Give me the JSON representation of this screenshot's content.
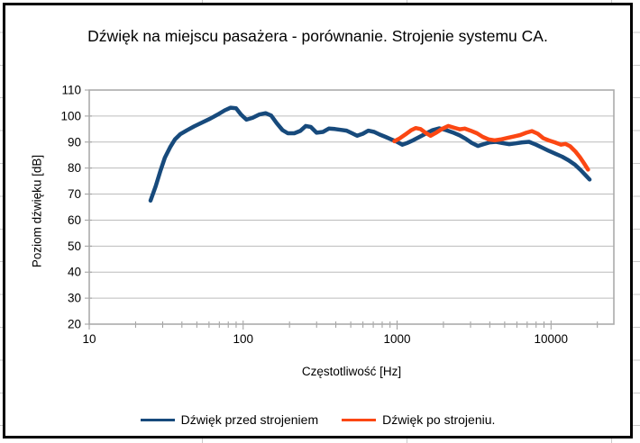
{
  "chart_data": {
    "type": "line",
    "title": "Dźwięk na miejscu pasażera - porównanie. Strojenie systemu CA.",
    "xlabel": "Częstotliwość [Hz]",
    "ylabel": "Poziom dźwięku [dB]",
    "x_scale": "log",
    "xlim": [
      10,
      25600
    ],
    "ylim": [
      20,
      110
    ],
    "y_tick_step": 10,
    "x_tick_labels": [
      "10",
      "100",
      "1000",
      "10000"
    ],
    "y_tick_labels": [
      "20",
      "30",
      "40",
      "50",
      "60",
      "70",
      "80",
      "90",
      "100",
      "110"
    ],
    "grid": "horizontal",
    "legend_position": "bottom",
    "series": [
      {
        "name": "Dźwięk przed strojeniem",
        "color": "#174A7C",
        "points": [
          [
            25,
            67.5
          ],
          [
            27,
            73
          ],
          [
            29,
            79
          ],
          [
            31,
            84
          ],
          [
            33.5,
            88
          ],
          [
            36,
            91
          ],
          [
            39,
            93
          ],
          [
            43,
            94.5
          ],
          [
            48,
            96
          ],
          [
            54,
            97.5
          ],
          [
            61,
            99
          ],
          [
            68,
            100.5
          ],
          [
            76,
            102.2
          ],
          [
            83,
            103.2
          ],
          [
            90,
            103
          ],
          [
            97,
            100.5
          ],
          [
            105,
            98.6
          ],
          [
            115,
            99.3
          ],
          [
            127,
            100.6
          ],
          [
            140,
            101.1
          ],
          [
            152,
            100.2
          ],
          [
            165,
            97.3
          ],
          [
            180,
            94.6
          ],
          [
            195,
            93.4
          ],
          [
            215,
            93.4
          ],
          [
            235,
            94.3
          ],
          [
            255,
            96.2
          ],
          [
            275,
            95.8
          ],
          [
            300,
            93.6
          ],
          [
            330,
            93.9
          ],
          [
            360,
            95.2
          ],
          [
            395,
            95
          ],
          [
            430,
            94.7
          ],
          [
            470,
            94.4
          ],
          [
            510,
            93.4
          ],
          [
            550,
            92.4
          ],
          [
            600,
            93.2
          ],
          [
            650,
            94.4
          ],
          [
            710,
            93.9
          ],
          [
            770,
            92.9
          ],
          [
            840,
            92
          ],
          [
            920,
            91
          ],
          [
            1000,
            90.1
          ],
          [
            1080,
            89
          ],
          [
            1170,
            89.7
          ],
          [
            1270,
            90.7
          ],
          [
            1400,
            92
          ],
          [
            1550,
            93.4
          ],
          [
            1700,
            94.6
          ],
          [
            1880,
            95.3
          ],
          [
            2080,
            94.6
          ],
          [
            2300,
            93.7
          ],
          [
            2550,
            92.6
          ],
          [
            2800,
            91.2
          ],
          [
            3050,
            89.7
          ],
          [
            3350,
            88.5
          ],
          [
            3650,
            89.2
          ],
          [
            4000,
            89.9
          ],
          [
            4400,
            90.1
          ],
          [
            4850,
            89.6
          ],
          [
            5350,
            89.2
          ],
          [
            5900,
            89.5
          ],
          [
            6500,
            89.9
          ],
          [
            7200,
            90.1
          ],
          [
            8000,
            89
          ],
          [
            8800,
            87.8
          ],
          [
            9700,
            86.6
          ],
          [
            10700,
            85.5
          ],
          [
            11800,
            84.4
          ],
          [
            13000,
            83
          ],
          [
            14300,
            81.3
          ],
          [
            15600,
            79.2
          ],
          [
            16800,
            77.2
          ],
          [
            17800,
            75.6
          ]
        ]
      },
      {
        "name": "Dźwięk po strojeniu.",
        "color": "#FB4713",
        "points": [
          [
            960,
            90.3
          ],
          [
            1040,
            91.4
          ],
          [
            1130,
            92.9
          ],
          [
            1230,
            94.5
          ],
          [
            1320,
            95.4
          ],
          [
            1420,
            95
          ],
          [
            1530,
            93.6
          ],
          [
            1650,
            92.4
          ],
          [
            1780,
            93.5
          ],
          [
            1950,
            95
          ],
          [
            2150,
            96.2
          ],
          [
            2350,
            95.5
          ],
          [
            2550,
            94.9
          ],
          [
            2750,
            95.2
          ],
          [
            3000,
            94.4
          ],
          [
            3300,
            93.4
          ],
          [
            3600,
            92
          ],
          [
            3950,
            91
          ],
          [
            4300,
            90.7
          ],
          [
            4700,
            91
          ],
          [
            5200,
            91.6
          ],
          [
            5700,
            92.1
          ],
          [
            6300,
            92.7
          ],
          [
            6900,
            93.6
          ],
          [
            7500,
            94.2
          ],
          [
            8200,
            93.2
          ],
          [
            8900,
            91.5
          ],
          [
            9700,
            90.6
          ],
          [
            10600,
            89.9
          ],
          [
            11600,
            89
          ],
          [
            12400,
            89.3
          ],
          [
            13300,
            88.4
          ],
          [
            14400,
            86.4
          ],
          [
            15400,
            84.2
          ],
          [
            16400,
            81.8
          ],
          [
            17400,
            79.4
          ]
        ]
      }
    ]
  },
  "style": {
    "grid_color": "#bcbcbc",
    "axis_color": "#9b9b9b",
    "plot_border_color": "#ababab",
    "chart_border_color": "#000000",
    "cell_line_color": "#c9c9c9",
    "text_color": "#000000",
    "series_colors": [
      "#174A7C",
      "#FB4713"
    ]
  }
}
